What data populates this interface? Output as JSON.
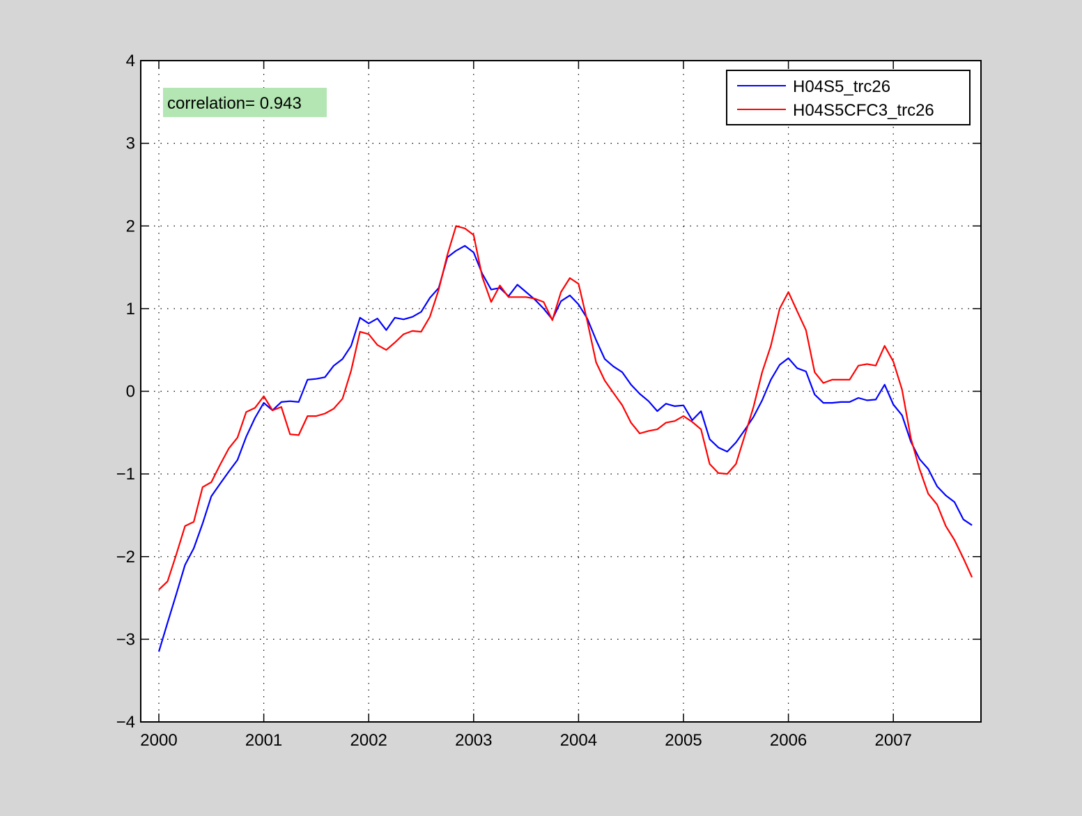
{
  "colors": {
    "figure_background": "#d6d6d6",
    "axes_background": "#ffffff",
    "series_1": "#0000ff",
    "series_2": "#ff0000",
    "annotation_background": "#b3e6b3"
  },
  "chart_data": {
    "type": "line",
    "title": "",
    "xlabel": "",
    "ylabel": "",
    "xlim": [
      2000,
      2008.2
    ],
    "ylim": [
      -4,
      4
    ],
    "grid": true,
    "grid_style": "dotted",
    "legend_position": "top-right",
    "x_ticks": [
      2000,
      2001,
      2002,
      2003,
      2004,
      2005,
      2006,
      2007
    ],
    "x_tick_labels": [
      "2000",
      "2001",
      "2002",
      "2003",
      "2004",
      "2005",
      "2006",
      "2007"
    ],
    "y_ticks": [
      -4,
      -3,
      -2,
      -1,
      0,
      1,
      2,
      3,
      4
    ],
    "y_tick_labels": [
      "−4",
      "−3",
      "−2",
      "−1",
      "0",
      "1",
      "2",
      "3",
      "4"
    ],
    "annotation": "correlation= 0.943",
    "x": [
      2000.0,
      2000.083,
      2000.167,
      2000.25,
      2000.333,
      2000.417,
      2000.5,
      2000.583,
      2000.667,
      2000.75,
      2000.833,
      2000.917,
      2001.0,
      2001.083,
      2001.167,
      2001.25,
      2001.333,
      2001.417,
      2001.5,
      2001.583,
      2001.667,
      2001.75,
      2001.833,
      2001.917,
      2002.0,
      2002.083,
      2002.167,
      2002.25,
      2002.333,
      2002.417,
      2002.5,
      2002.583,
      2002.667,
      2002.75,
      2002.833,
      2002.917,
      2003.0,
      2003.083,
      2003.167,
      2003.25,
      2003.333,
      2003.417,
      2003.5,
      2003.583,
      2003.667,
      2003.75,
      2003.833,
      2003.917,
      2004.0,
      2004.083,
      2004.167,
      2004.25,
      2004.333,
      2004.417,
      2004.5,
      2004.583,
      2004.667,
      2004.75,
      2004.833,
      2004.917,
      2005.0,
      2005.083,
      2005.167,
      2005.25,
      2005.333,
      2005.417,
      2005.5,
      2005.583,
      2005.667,
      2005.75,
      2005.833,
      2005.917,
      2006.0,
      2006.083,
      2006.167,
      2006.25,
      2006.333,
      2006.417,
      2006.5,
      2006.583,
      2006.667,
      2006.75,
      2006.833,
      2006.917,
      2007.0,
      2007.083,
      2007.167,
      2007.25,
      2007.333,
      2007.417,
      2007.5,
      2007.583,
      2007.667,
      2007.75
    ],
    "series": [
      {
        "name": "H04S5_trc26",
        "color": "#0000ff",
        "values": [
          -3.15,
          -2.8,
          -2.45,
          -2.1,
          -1.9,
          -1.6,
          -1.27,
          -1.12,
          -0.97,
          -0.83,
          -0.55,
          -0.32,
          -0.14,
          -0.23,
          -0.13,
          -0.12,
          -0.13,
          0.14,
          0.15,
          0.17,
          0.31,
          0.39,
          0.55,
          0.89,
          0.82,
          0.88,
          0.74,
          0.89,
          0.87,
          0.9,
          0.96,
          1.13,
          1.25,
          1.62,
          1.7,
          1.76,
          1.68,
          1.42,
          1.23,
          1.25,
          1.15,
          1.29,
          1.2,
          1.11,
          1.0,
          0.87,
          1.09,
          1.16,
          1.05,
          0.88,
          0.62,
          0.39,
          0.3,
          0.23,
          0.08,
          -0.03,
          -0.12,
          -0.24,
          -0.15,
          -0.18,
          -0.17,
          -0.35,
          -0.24,
          -0.58,
          -0.68,
          -0.73,
          -0.62,
          -0.47,
          -0.31,
          -0.11,
          0.14,
          0.32,
          0.4,
          0.28,
          0.24,
          -0.04,
          -0.14,
          -0.14,
          -0.13,
          -0.13,
          -0.08,
          -0.11,
          -0.1,
          0.08,
          -0.16,
          -0.29,
          -0.61,
          -0.82,
          -0.94,
          -1.15,
          -1.26,
          -1.34,
          -1.55,
          -1.62
        ]
      },
      {
        "name": "H04S5CFC3_trc26",
        "color": "#ff0000",
        "values": [
          -2.4,
          -2.3,
          -1.97,
          -1.63,
          -1.58,
          -1.16,
          -1.1,
          -0.89,
          -0.69,
          -0.56,
          -0.25,
          -0.2,
          -0.06,
          -0.23,
          -0.19,
          -0.52,
          -0.53,
          -0.3,
          -0.3,
          -0.27,
          -0.21,
          -0.09,
          0.25,
          0.72,
          0.69,
          0.56,
          0.5,
          0.59,
          0.69,
          0.73,
          0.72,
          0.9,
          1.23,
          1.65,
          2.0,
          1.97,
          1.89,
          1.38,
          1.08,
          1.28,
          1.14,
          1.14,
          1.14,
          1.12,
          1.08,
          0.86,
          1.2,
          1.37,
          1.3,
          0.85,
          0.35,
          0.13,
          -0.02,
          -0.17,
          -0.38,
          -0.51,
          -0.48,
          -0.46,
          -0.38,
          -0.36,
          -0.3,
          -0.37,
          -0.46,
          -0.88,
          -0.99,
          -1.0,
          -0.88,
          -0.54,
          -0.19,
          0.23,
          0.55,
          1.0,
          1.2,
          0.97,
          0.74,
          0.23,
          0.1,
          0.14,
          0.14,
          0.14,
          0.31,
          0.33,
          0.31,
          0.55,
          0.36,
          0.02,
          -0.57,
          -0.94,
          -1.24,
          -1.37,
          -1.63,
          -1.8,
          -2.02,
          -2.25
        ]
      }
    ]
  }
}
